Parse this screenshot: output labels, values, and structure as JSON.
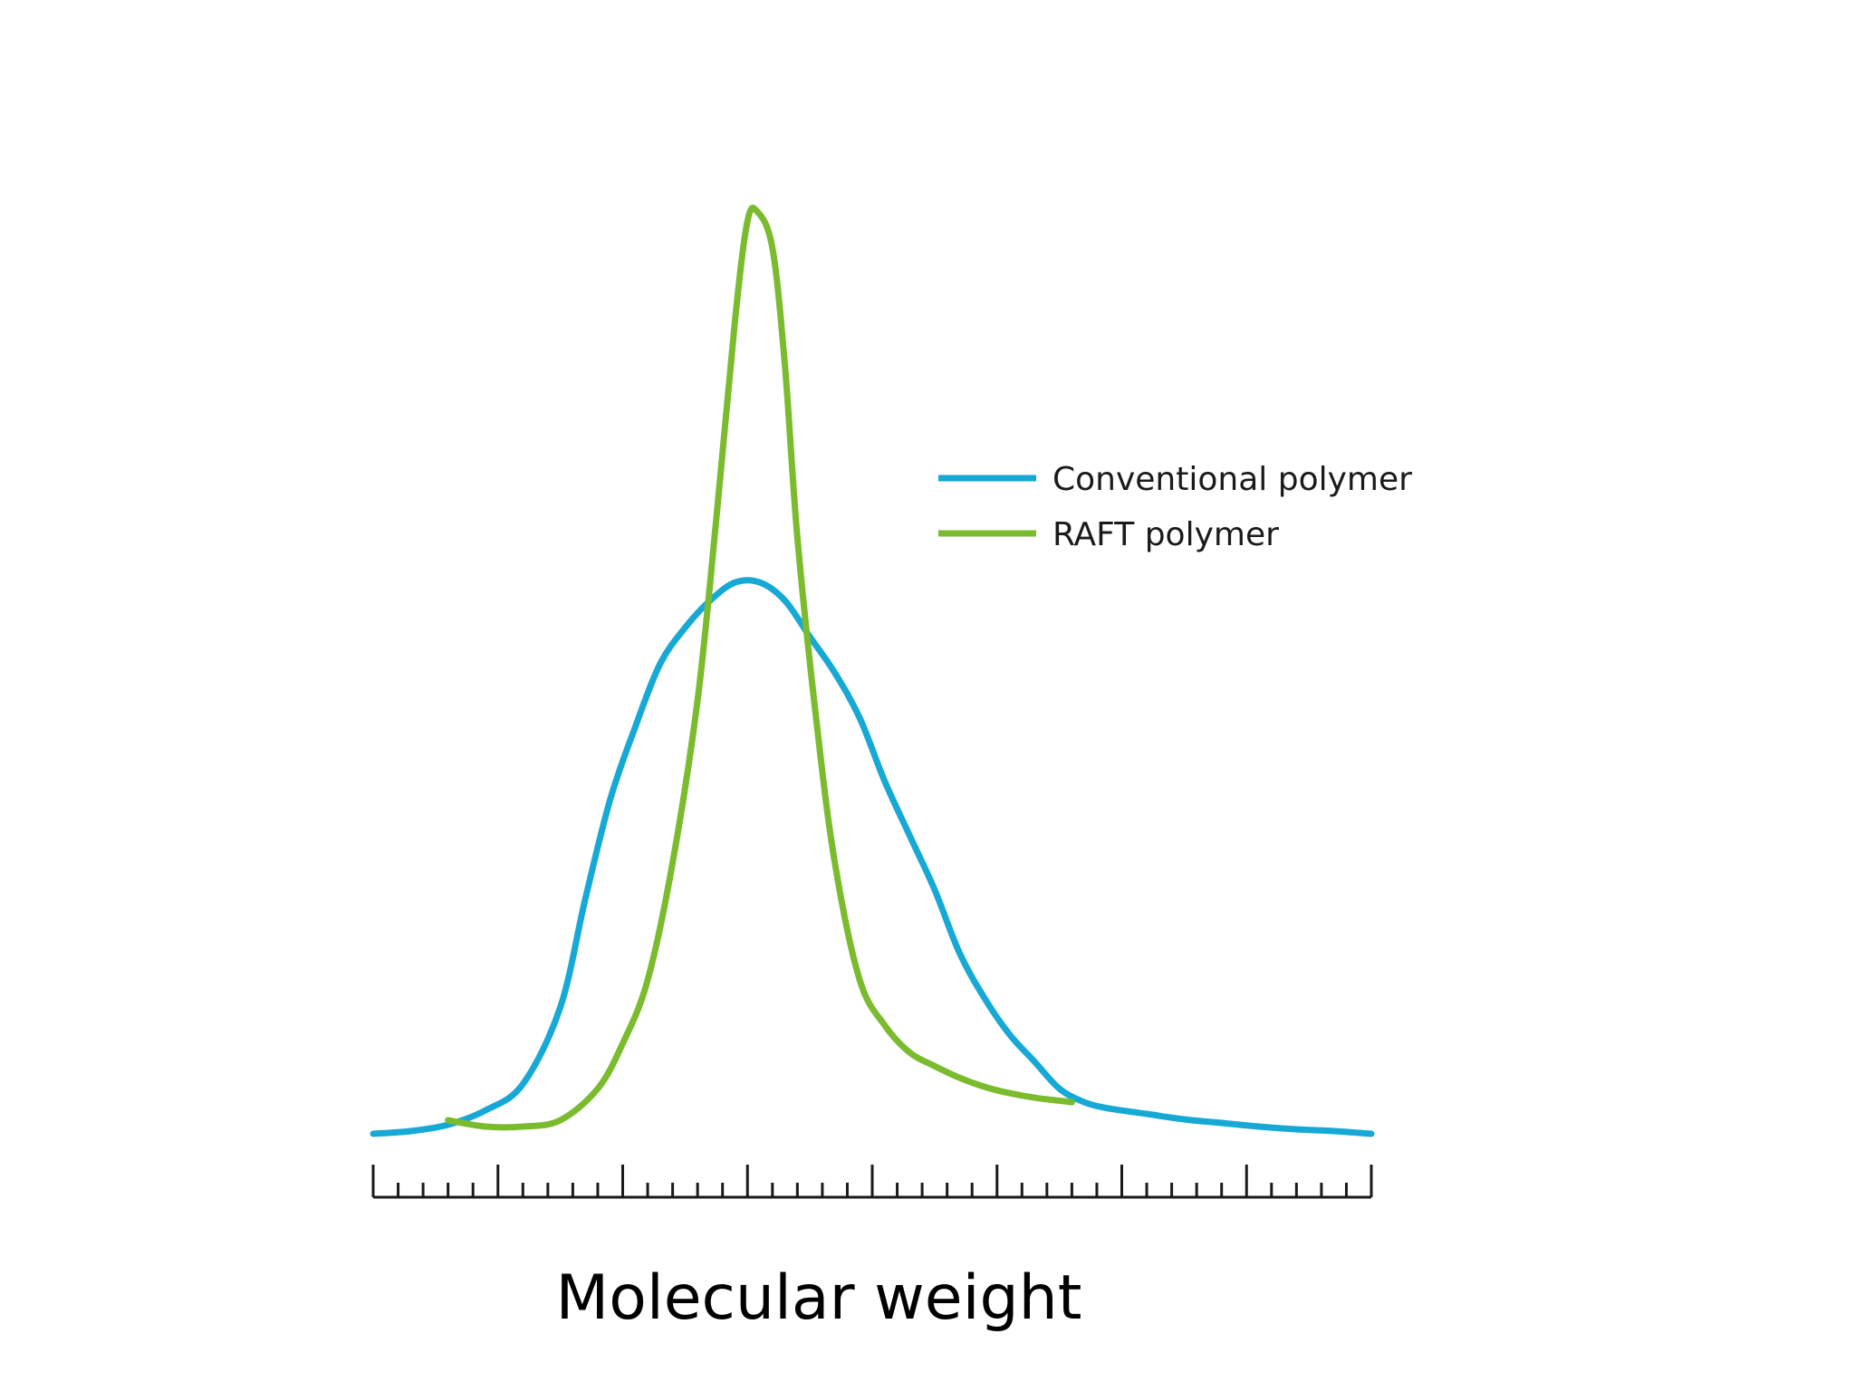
{
  "chart_data": {
    "type": "line",
    "title": "",
    "xlabel": "Molecular weight",
    "ylabel": "",
    "xlim": [
      0,
      80
    ],
    "ylim": [
      0,
      100
    ],
    "grid": false,
    "legend_position": "top-right",
    "major_tick_every": 10,
    "minor_ticks_per_major": 4,
    "series": [
      {
        "name": "Conventional polymer",
        "color": "#16a9d6",
        "x": [
          0,
          3,
          6,
          9,
          12,
          15,
          17,
          19,
          21,
          23,
          25,
          27,
          29,
          31,
          33,
          35,
          37,
          39,
          41,
          43,
          45,
          47,
          49,
          51,
          53,
          55,
          57,
          59,
          62,
          65,
          68,
          71,
          74,
          77,
          80
        ],
        "y": [
          0,
          0.3,
          1.0,
          2.6,
          5.5,
          14,
          26,
          37,
          45,
          52,
          56,
          59,
          61,
          61,
          59,
          55,
          51,
          46,
          39,
          33,
          27,
          20,
          15,
          11,
          8,
          5,
          3.5,
          2.8,
          2.2,
          1.6,
          1.2,
          0.8,
          0.5,
          0.3,
          0
        ]
      },
      {
        "name": "RAFT polymer",
        "color": "#7bbb2e",
        "x": [
          6,
          9,
          12,
          15,
          18,
          20,
          22,
          24,
          26,
          27.5,
          29,
          30,
          30.8,
          32,
          33,
          34,
          35.5,
          37,
          39,
          41,
          43,
          45,
          47,
          49,
          51,
          53,
          56
        ],
        "y": [
          1.5,
          0.8,
          0.8,
          1.5,
          5,
          10,
          17,
          30,
          48,
          68,
          90,
          101,
          102,
          98,
          85,
          66,
          46,
          30,
          17,
          12,
          9,
          7.5,
          6.2,
          5.2,
          4.5,
          4,
          3.5
        ]
      }
    ]
  }
}
